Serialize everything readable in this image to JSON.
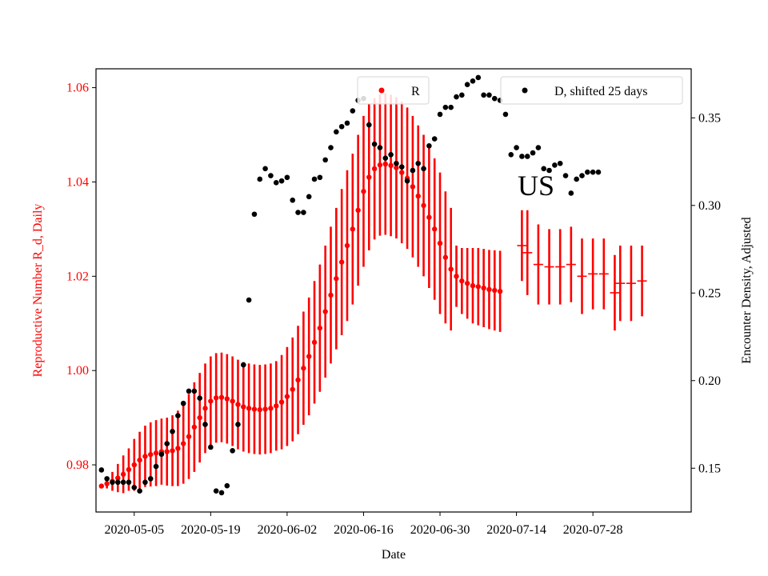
{
  "chart_data": {
    "type": "scatter",
    "xlabel": "Date",
    "ylabel_left": "Reproductive Number R_d, Daily",
    "ylabel_right": "Encounter Density, Adjusted",
    "x_range": [
      "2020-04-28",
      "2020-08-15"
    ],
    "ylim_left": [
      0.97,
      1.064
    ],
    "ylim_right": [
      0.125,
      0.378
    ],
    "x_ticks": [
      "2020-05-05",
      "2020-05-19",
      "2020-06-02",
      "2020-06-16",
      "2020-06-30",
      "2020-07-14",
      "2020-07-28"
    ],
    "y_ticks_left": [
      "0.98",
      "1.00",
      "1.02",
      "1.04",
      "1.06"
    ],
    "y_ticks_right": [
      "0.15",
      "0.20",
      "0.25",
      "0.30",
      "0.35"
    ],
    "grid": false,
    "annotation": "US",
    "left_axis_color": "#ff0000",
    "right_axis_color": "#000000",
    "series": [
      {
        "name": "R",
        "axis": "left",
        "color": "#ff0000",
        "marker": "point",
        "legend_position": "upper-center",
        "start_date": "2020-04-29",
        "y": [
          0.9755,
          0.976,
          0.9765,
          0.9772,
          0.978,
          0.979,
          0.98,
          0.981,
          0.9818,
          0.9822,
          0.9825,
          0.9828,
          0.9828,
          0.983,
          0.9835,
          0.9845,
          0.986,
          0.988,
          0.99,
          0.992,
          0.9935,
          0.9942,
          0.9943,
          0.994,
          0.9935,
          0.9928,
          0.9923,
          0.992,
          0.9918,
          0.9917,
          0.9918,
          0.992,
          0.9925,
          0.9933,
          0.9945,
          0.996,
          0.998,
          1.0005,
          1.003,
          1.006,
          1.009,
          1.0125,
          1.016,
          1.0195,
          1.023,
          1.0265,
          1.03,
          1.034,
          1.038,
          1.041,
          1.0428,
          1.0436,
          1.0438,
          1.0435,
          1.043,
          1.042,
          1.0408,
          1.039,
          1.037,
          1.035,
          1.0325,
          1.03,
          1.027,
          1.024,
          1.0215,
          1.02,
          1.019,
          1.0185,
          1.018,
          1.0178,
          1.0175,
          1.0172,
          1.017,
          1.0168
        ],
        "err": [
          0.0,
          0.001,
          0.002,
          0.003,
          0.004,
          0.0045,
          0.0055,
          0.006,
          0.0065,
          0.0068,
          0.007,
          0.007,
          0.0072,
          0.0075,
          0.008,
          0.0085,
          0.009,
          0.0095,
          0.0095,
          0.0095,
          0.0095,
          0.0095,
          0.0095,
          0.0095,
          0.0095,
          0.0095,
          0.0095,
          0.0095,
          0.0095,
          0.0095,
          0.0095,
          0.0095,
          0.0095,
          0.01,
          0.0105,
          0.011,
          0.0115,
          0.012,
          0.0125,
          0.013,
          0.0135,
          0.014,
          0.0145,
          0.015,
          0.0155,
          0.016,
          0.016,
          0.016,
          0.016,
          0.0155,
          0.015,
          0.015,
          0.015,
          0.015,
          0.015,
          0.015,
          0.015,
          0.015,
          0.015,
          0.015,
          0.015,
          0.015,
          0.015,
          0.014,
          0.013,
          0.0065,
          0.007,
          0.0075,
          0.008,
          0.0082,
          0.0083,
          0.0084,
          0.0085,
          0.0086
        ],
        "weekly": [
          {
            "date": "2020-07-15",
            "y": 1.0265,
            "err": 0.0075
          },
          {
            "date": "2020-07-16",
            "y": 1.025,
            "err": 0.009
          },
          {
            "date": "2020-07-18",
            "y": 1.0225,
            "err": 0.0085
          },
          {
            "date": "2020-07-20",
            "y": 1.022,
            "err": 0.008
          },
          {
            "date": "2020-07-22",
            "y": 1.022,
            "err": 0.008
          },
          {
            "date": "2020-07-24",
            "y": 1.0225,
            "err": 0.008
          },
          {
            "date": "2020-07-26",
            "y": 1.02,
            "err": 0.008
          },
          {
            "date": "2020-07-28",
            "y": 1.0205,
            "err": 0.0075
          },
          {
            "date": "2020-07-30",
            "y": 1.0205,
            "err": 0.0075
          },
          {
            "date": "2020-08-01",
            "y": 1.0165,
            "err": 0.008
          },
          {
            "date": "2020-08-02",
            "y": 1.0185,
            "err": 0.008
          },
          {
            "date": "2020-08-04",
            "y": 1.0185,
            "err": 0.008
          },
          {
            "date": "2020-08-06",
            "y": 1.019,
            "err": 0.0075
          }
        ]
      },
      {
        "name": "D, shifted 25 days",
        "axis": "right",
        "color": "#000000",
        "marker": "point",
        "legend_position": "upper-right",
        "start_date": "2020-04-29",
        "y": [
          0.149,
          0.144,
          0.142,
          0.142,
          0.142,
          0.142,
          0.139,
          0.137,
          0.142,
          0.144,
          0.151,
          0.158,
          0.164,
          0.171,
          0.18,
          0.187,
          0.194,
          0.194,
          0.19,
          0.175,
          0.162,
          0.137,
          0.136,
          0.14,
          0.16,
          0.175,
          0.209,
          0.246,
          0.295,
          0.315,
          0.321,
          0.317,
          0.313,
          0.314,
          0.316,
          0.303,
          0.296,
          0.296,
          0.305,
          0.315,
          0.316,
          0.326,
          0.333,
          0.342,
          0.345,
          0.347,
          0.354,
          0.36,
          0.361,
          0.346,
          0.335,
          0.333,
          0.327,
          0.329,
          0.324,
          0.322,
          0.314,
          0.32,
          0.324,
          0.321,
          0.334,
          0.338,
          0.352,
          0.356,
          0.356,
          0.362,
          0.363,
          0.369,
          0.371,
          0.373,
          0.363,
          0.363,
          0.361,
          0.36,
          0.352,
          0.329,
          0.333,
          0.328,
          0.328,
          0.33,
          0.333,
          0.321,
          0.32,
          0.323,
          0.324,
          0.317,
          0.307,
          0.315,
          0.317,
          0.319,
          0.319,
          0.319
        ]
      }
    ]
  }
}
